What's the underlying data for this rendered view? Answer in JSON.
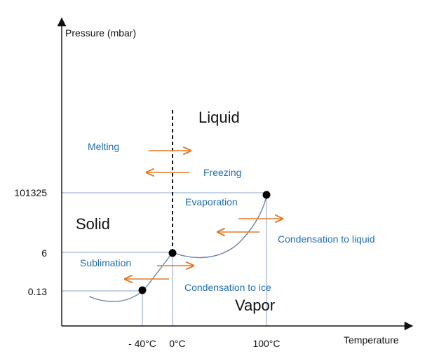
{
  "axes": {
    "y_title": "Pressure (mbar)",
    "x_title": "Temperature"
  },
  "ticks": {
    "y": [
      "101325",
      "6",
      "0.13"
    ],
    "x": [
      "- 40°C",
      "0°C",
      "100°C"
    ]
  },
  "phases": {
    "liquid": "Liquid",
    "solid": "Solid",
    "vapor": "Vapor"
  },
  "processes": {
    "melting": "Melting",
    "freezing": "Freezing",
    "evaporation": "Evaporation",
    "condensation_liquid": "Condensation to liquid",
    "sublimation": "Sublimation",
    "condensation_ice": "Condensation to ice"
  },
  "colors": {
    "axis": "#111111",
    "guide": "#8aa4c8",
    "curve": "#6f86a8",
    "arrow": "#e07b2a",
    "process_text": "#1f6fb2",
    "point": "#000000"
  }
}
